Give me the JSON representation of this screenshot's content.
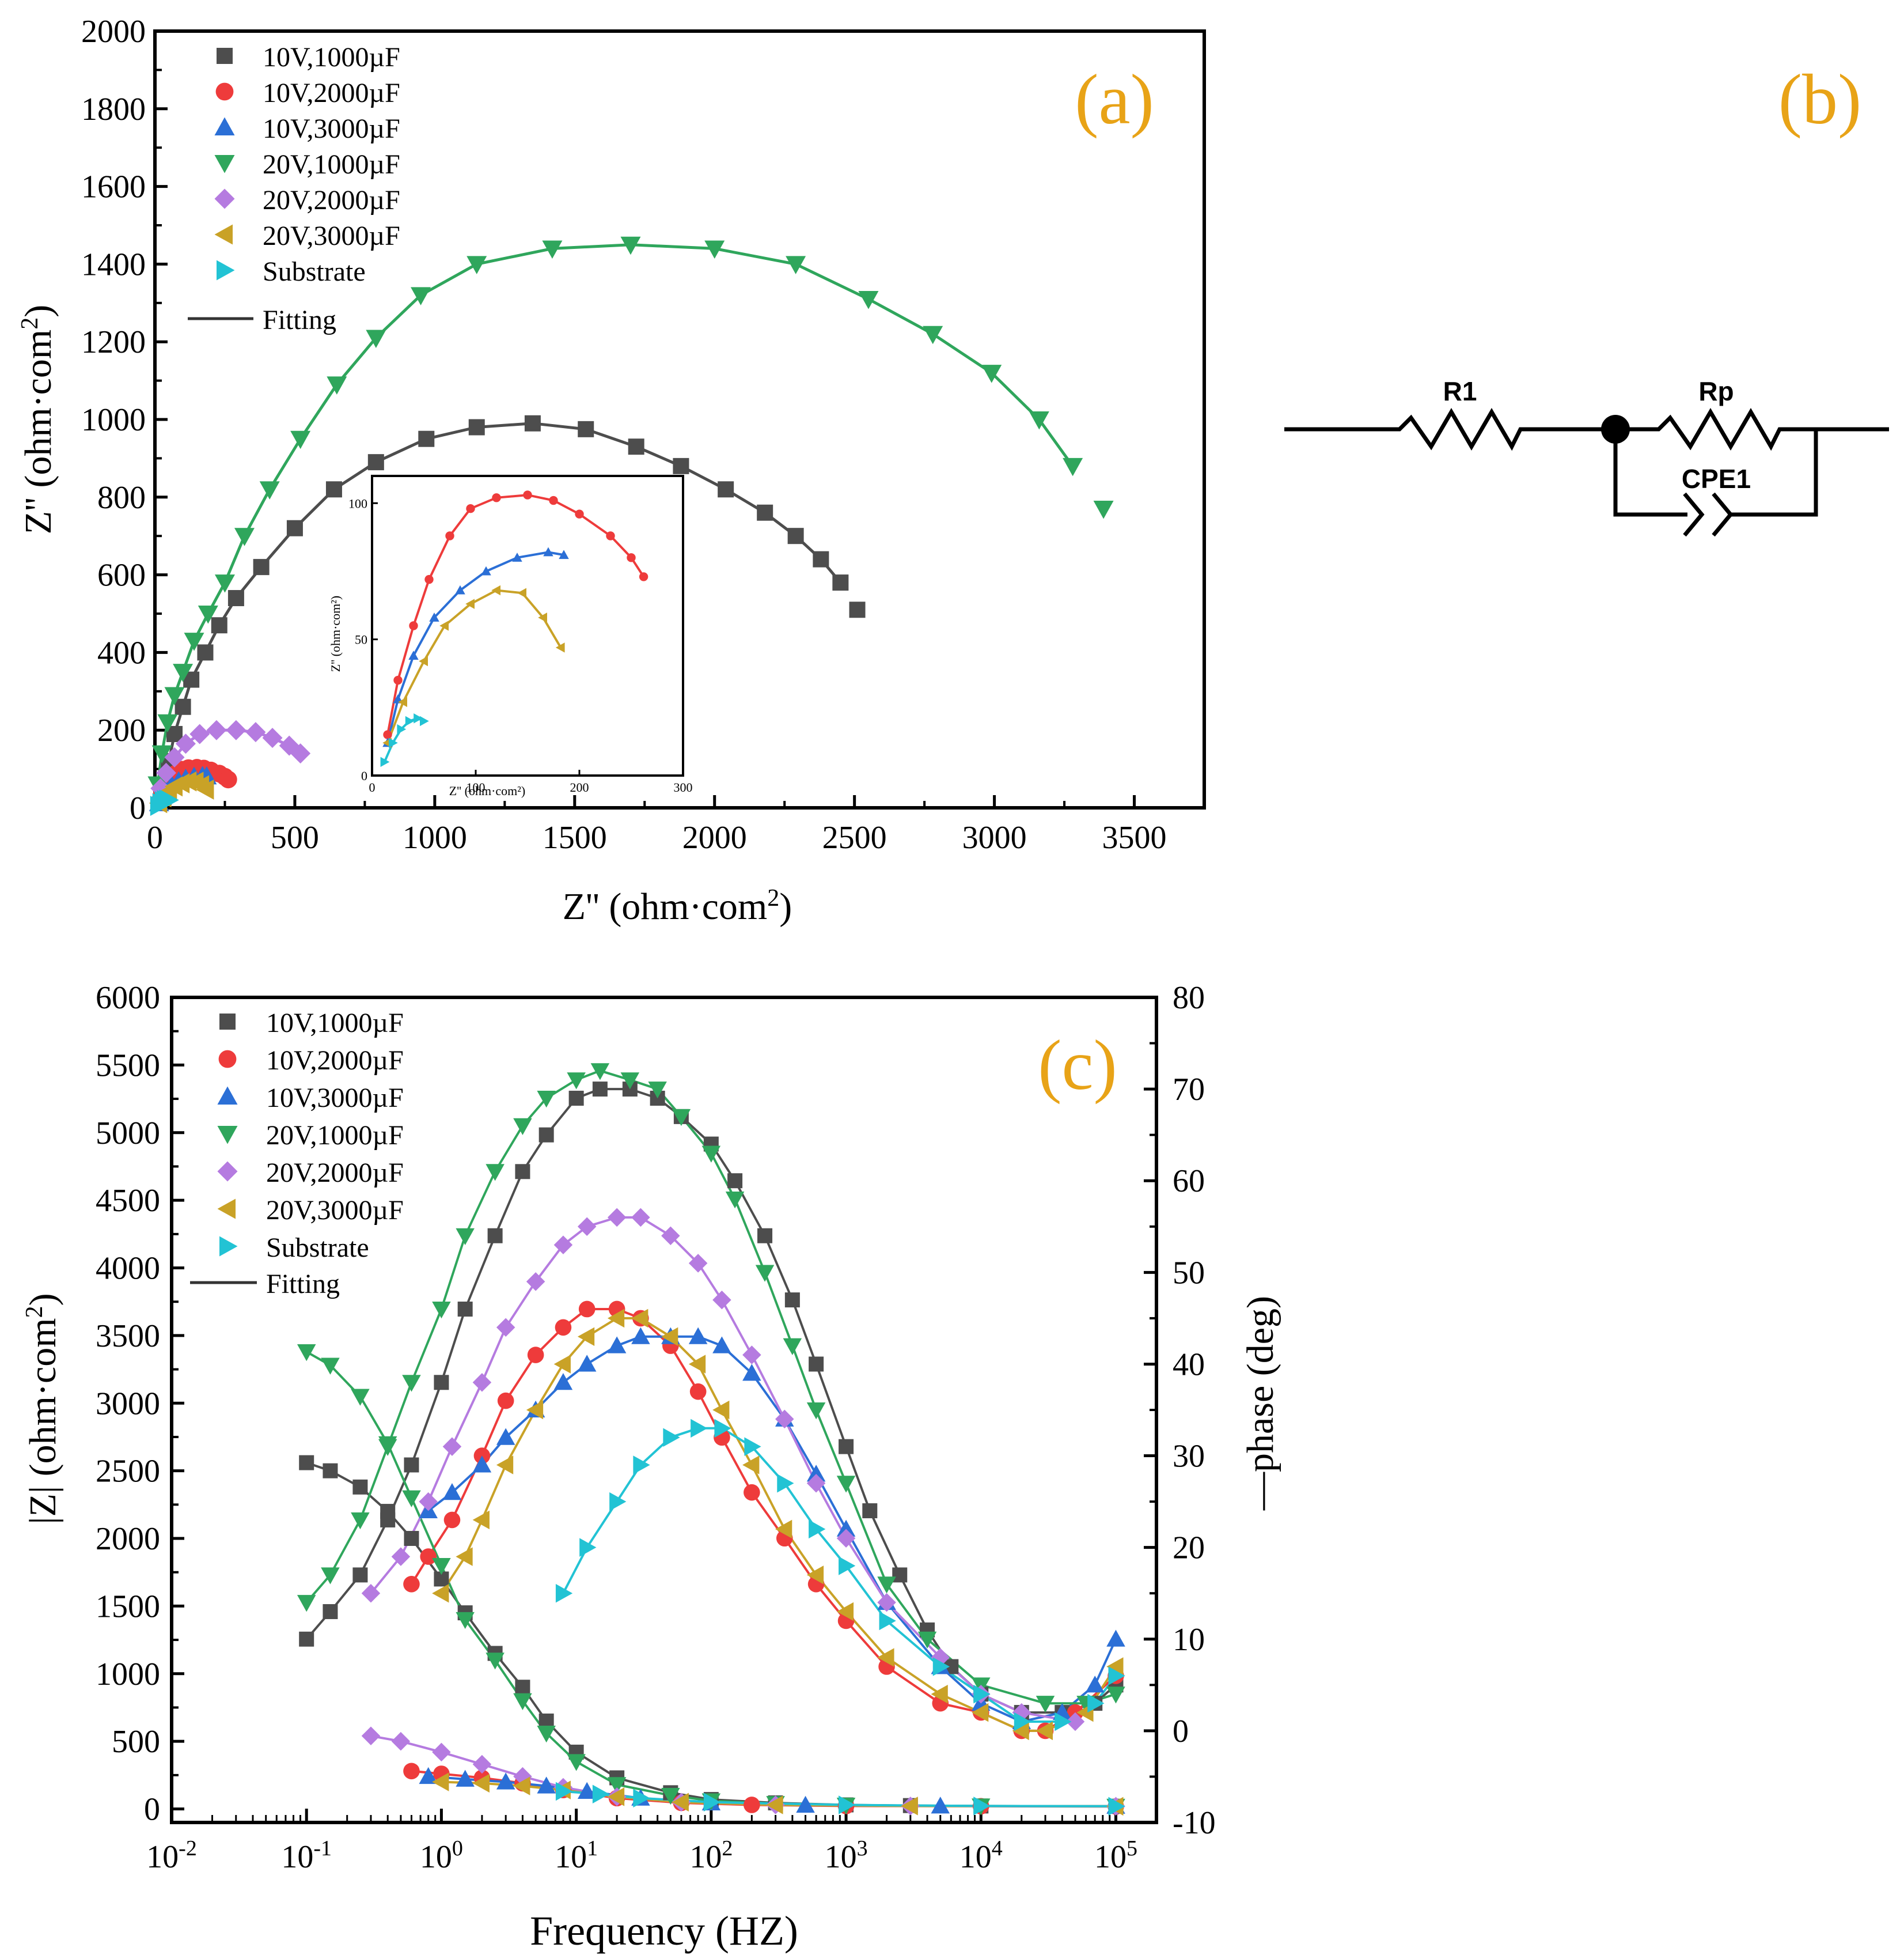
{
  "colors": {
    "accent_label": "#E8A317",
    "axis": "#000000",
    "fit_line": "#333333"
  },
  "series_style": [
    {
      "name": "10V,1000µF",
      "color": "#4D4D4D",
      "marker": "square"
    },
    {
      "name": "10V,2000µF",
      "color": "#EE3B3B",
      "marker": "circle"
    },
    {
      "name": "10V,3000µF",
      "color": "#2B6FD6",
      "marker": "triangle-up"
    },
    {
      "name": "20V,1000µF",
      "color": "#2FA65C",
      "marker": "triangle-down"
    },
    {
      "name": "20V,2000µF",
      "color": "#B57BE0",
      "marker": "diamond"
    },
    {
      "name": "20V,3000µF",
      "color": "#C9A227",
      "marker": "triangle-left"
    },
    {
      "name": "Substrate",
      "color": "#22C3D4",
      "marker": "triangle-right"
    }
  ],
  "legend_fitting": "Fitting",
  "panel_b": {
    "label": "(b)",
    "elements": [
      "R1",
      "Rp",
      "CPE1"
    ]
  },
  "chart_data": [
    {
      "id": "a",
      "label": "(a)",
      "type": "scatter",
      "title": "",
      "xlabel": "Z'' (ohm·com²)",
      "ylabel": "Z'' (ohm·com²)",
      "xlim": [
        0,
        3750
      ],
      "ylim": [
        0,
        2000
      ],
      "xticks": [
        0,
        500,
        1000,
        1500,
        2000,
        2500,
        3000,
        3500
      ],
      "yticks": [
        0,
        200,
        400,
        600,
        800,
        1000,
        1200,
        1400,
        1600,
        1800,
        2000
      ],
      "legend": "top-left",
      "series": [
        {
          "name": "10V,1000µF",
          "x": [
            30,
            50,
            70,
            100,
            130,
            180,
            230,
            290,
            380,
            500,
            640,
            790,
            970,
            1150,
            1350,
            1540,
            1720,
            1880,
            2040,
            2180,
            2290,
            2380,
            2450,
            2510
          ],
          "y": [
            50,
            120,
            190,
            260,
            330,
            400,
            470,
            540,
            620,
            720,
            820,
            890,
            950,
            980,
            990,
            975,
            930,
            880,
            820,
            760,
            700,
            640,
            580,
            510
          ]
        },
        {
          "name": "10V,2000µF",
          "x": [
            15,
            25,
            40,
            55,
            75,
            95,
            120,
            150,
            175,
            200,
            230,
            250,
            262
          ],
          "y": [
            15,
            35,
            55,
            72,
            88,
            98,
            102,
            103,
            101,
            96,
            88,
            80,
            73
          ]
        },
        {
          "name": "10V,3000µF",
          "x": [
            15,
            25,
            40,
            60,
            85,
            110,
            140,
            170,
            185
          ],
          "y": [
            12,
            28,
            44,
            58,
            68,
            75,
            80,
            82,
            81
          ]
        },
        {
          "name": "20V,1000µF",
          "x": [
            10,
            25,
            45,
            70,
            100,
            140,
            190,
            250,
            320,
            410,
            520,
            650,
            790,
            950,
            1150,
            1420,
            1700,
            2000,
            2290,
            2550,
            2780,
            2990,
            3160,
            3280,
            3390
          ],
          "y": [
            60,
            140,
            220,
            290,
            350,
            430,
            500,
            580,
            700,
            820,
            950,
            1090,
            1210,
            1320,
            1400,
            1440,
            1450,
            1440,
            1400,
            1310,
            1220,
            1120,
            1000,
            880,
            770
          ]
        },
        {
          "name": "20V,2000µF",
          "x": [
            20,
            40,
            70,
            110,
            160,
            220,
            290,
            360,
            420,
            480,
            520
          ],
          "y": [
            50,
            90,
            130,
            165,
            190,
            200,
            200,
            195,
            180,
            160,
            140
          ]
        },
        {
          "name": "20V,3000µF",
          "x": [
            15,
            30,
            50,
            70,
            95,
            120,
            145,
            165,
            182
          ],
          "y": [
            12,
            27,
            42,
            55,
            63,
            68,
            67,
            58,
            47
          ]
        },
        {
          "name": "Substrate",
          "x": [
            12,
            20,
            28,
            36,
            44,
            50
          ],
          "y": [
            5,
            12,
            17,
            20,
            21,
            20
          ]
        }
      ],
      "inset": {
        "xlim": [
          0,
          300
        ],
        "ylim": [
          0,
          110
        ],
        "xticks": [
          0,
          100,
          200,
          300
        ],
        "yticks": [
          0,
          50,
          100
        ],
        "xlabel": "Z'' (ohm·com²)",
        "ylabel": "Z'' (ohm·com²)",
        "series_included": [
          "10V,2000µF",
          "10V,3000µF",
          "20V,3000µF",
          "Substrate"
        ]
      }
    },
    {
      "id": "c",
      "label": "(c)",
      "type": "scatter",
      "xscale": "log",
      "xlabel": "Frequency (HZ)",
      "ylabel": "|Z| (ohm·com²)",
      "y2label": "—phase (deg)",
      "xlim": [
        0.01,
        200000
      ],
      "ylim": [
        -100,
        6000
      ],
      "y2lim": [
        -10,
        80
      ],
      "xtick_exponents": [
        -2,
        -1,
        0,
        1,
        2,
        3,
        4,
        5
      ],
      "yticks": [
        0,
        500,
        1000,
        1500,
        2000,
        2500,
        3000,
        3500,
        4000,
        4500,
        5000,
        5500,
        6000
      ],
      "y2ticks": [
        -10,
        0,
        10,
        20,
        30,
        40,
        50,
        60,
        70,
        80
      ],
      "legend": "top-left",
      "series": [
        {
          "name": "10V,1000µF",
          "impedance": {
            "f": [
              0.1,
              0.15,
              0.25,
              0.4,
              0.6,
              1,
              1.5,
              2.5,
              4,
              6,
              10,
              20,
              50,
              100,
              300,
              1000,
              3000,
              10000,
              100000
            ],
            "z": [
              2560,
              2500,
              2380,
              2200,
              2000,
              1700,
              1450,
              1150,
              900,
              650,
              420,
              230,
              120,
              70,
              45,
              30,
              25,
              22,
              20
            ]
          },
          "phase": {
            "f": [
              0.1,
              0.15,
              0.25,
              0.4,
              0.6,
              1,
              1.5,
              2.5,
              4,
              6,
              10,
              15,
              25,
              40,
              60,
              100,
              150,
              250,
              400,
              600,
              1000,
              1500,
              2500,
              4000,
              6000,
              10000,
              20000,
              40000,
              70000,
              100000
            ],
            "p": [
              10,
              13,
              17,
              23,
              29,
              38,
              46,
              54,
              61,
              65,
              69,
              70,
              70,
              69,
              67,
              64,
              60,
              54,
              47,
              40,
              31,
              24,
              17,
              11,
              7,
              4,
              2,
              2,
              3,
              5
            ]
          }
        },
        {
          "name": "10V,2000µF",
          "impedance": {
            "f": [
              0.6,
              1,
              2,
              4,
              8,
              20,
              60,
              200,
              1000,
              10000,
              100000
            ],
            "z": [
              280,
              260,
              230,
              190,
              140,
              80,
              45,
              30,
              22,
              20,
              18
            ]
          },
          "phase": {
            "f": [
              0.6,
              0.8,
              1.2,
              2,
              3,
              5,
              8,
              12,
              20,
              30,
              50,
              80,
              120,
              200,
              350,
              600,
              1000,
              2000,
              5000,
              10000,
              20000,
              30000,
              50000,
              100000
            ],
            "p": [
              16,
              19,
              23,
              30,
              36,
              41,
              44,
              46,
              46,
              45,
              42,
              37,
              32,
              26,
              21,
              16,
              12,
              7,
              3,
              2,
              0,
              0,
              2,
              6
            ]
          }
        },
        {
          "name": "10V,3000µF",
          "impedance": {
            "f": [
              0.8,
              1.5,
              3,
              6,
              12,
              30,
              100,
              500,
              5000,
              100000
            ],
            "z": [
              240,
              220,
              200,
              170,
              130,
              80,
              45,
              28,
              22,
              20
            ]
          },
          "phase": {
            "f": [
              0.8,
              1.2,
              2,
              3,
              5,
              8,
              12,
              20,
              30,
              50,
              80,
              120,
              200,
              350,
              600,
              1000,
              2000,
              5000,
              10000,
              20000,
              40000,
              70000,
              100000
            ],
            "p": [
              24,
              26,
              29,
              32,
              35,
              38,
              40,
              42,
              43,
              43,
              43,
              42,
              39,
              34,
              28,
              22,
              14,
              7,
              3,
              1,
              2,
              5,
              10
            ]
          }
        },
        {
          "name": "20V,1000µF",
          "impedance": {
            "f": [
              0.1,
              0.15,
              0.25,
              0.4,
              0.6,
              1,
              1.5,
              2.5,
              4,
              6,
              10,
              20,
              50,
              100,
              300,
              1000,
              10000,
              100000
            ],
            "z": [
              3380,
              3280,
              3050,
              2700,
              2300,
              1800,
              1400,
              1100,
              800,
              560,
              350,
              180,
              100,
              60,
              40,
              28,
              22,
              20
            ]
          },
          "phase": {
            "f": [
              0.1,
              0.15,
              0.25,
              0.4,
              0.6,
              1,
              1.5,
              2.5,
              4,
              6,
              10,
              15,
              25,
              40,
              60,
              100,
              150,
              250,
              400,
              600,
              1000,
              2000,
              4000,
              10000,
              30000,
              60000,
              100000
            ],
            "p": [
              14,
              17,
              23,
              31,
              38,
              46,
              54,
              61,
              66,
              69,
              71,
              72,
              71,
              70,
              67,
              63,
              58,
              50,
              42,
              35,
              27,
              16,
              10,
              5,
              3,
              3,
              4
            ]
          }
        },
        {
          "name": "20V,2000µF",
          "impedance": {
            "f": [
              0.3,
              0.5,
              1,
              2,
              4,
              8,
              20,
              60,
              300,
              3000,
              100000
            ],
            "z": [
              540,
              500,
              420,
              330,
              240,
              160,
              90,
              50,
              30,
              22,
              20
            ]
          },
          "phase": {
            "f": [
              0.3,
              0.5,
              0.8,
              1.2,
              2,
              3,
              5,
              8,
              12,
              20,
              30,
              50,
              80,
              120,
              200,
              350,
              600,
              1000,
              2000,
              5000,
              10000,
              20000,
              50000
            ],
            "p": [
              15,
              19,
              25,
              31,
              38,
              44,
              49,
              53,
              55,
              56,
              56,
              54,
              51,
              47,
              41,
              34,
              27,
              21,
              14,
              8,
              4,
              2,
              1
            ]
          }
        },
        {
          "name": "20V,3000µF",
          "impedance": {
            "f": [
              1,
              2,
              4,
              8,
              20,
              60,
              300,
              3000,
              100000
            ],
            "z": [
              200,
              190,
              170,
              140,
              90,
              50,
              30,
              22,
              20
            ]
          },
          "phase": {
            "f": [
              1,
              1.5,
              2,
              3,
              5,
              8,
              12,
              20,
              30,
              50,
              80,
              120,
              200,
              350,
              600,
              1000,
              2000,
              5000,
              10000,
              20000,
              30000,
              60000,
              100000
            ],
            "p": [
              15,
              19,
              23,
              29,
              35,
              40,
              43,
              45,
              45,
              43,
              40,
              35,
              29,
              22,
              17,
              13,
              8,
              4,
              2,
              0,
              0,
              2,
              7
            ]
          }
        },
        {
          "name": "Substrate",
          "impedance": {
            "f": [
              8,
              15,
              30,
              100,
              1000,
              10000,
              100000
            ],
            "z": [
              130,
              110,
              80,
              50,
              30,
              22,
              20
            ]
          },
          "phase": {
            "f": [
              8,
              12,
              20,
              30,
              50,
              80,
              120,
              200,
              350,
              600,
              1000,
              2000,
              5000,
              10000,
              20000,
              40000,
              70000,
              100000
            ],
            "p": [
              15,
              20,
              25,
              29,
              32,
              33,
              33,
              31,
              27,
              22,
              18,
              12,
              7,
              4,
              1,
              1,
              3,
              6
            ]
          }
        }
      ]
    }
  ]
}
